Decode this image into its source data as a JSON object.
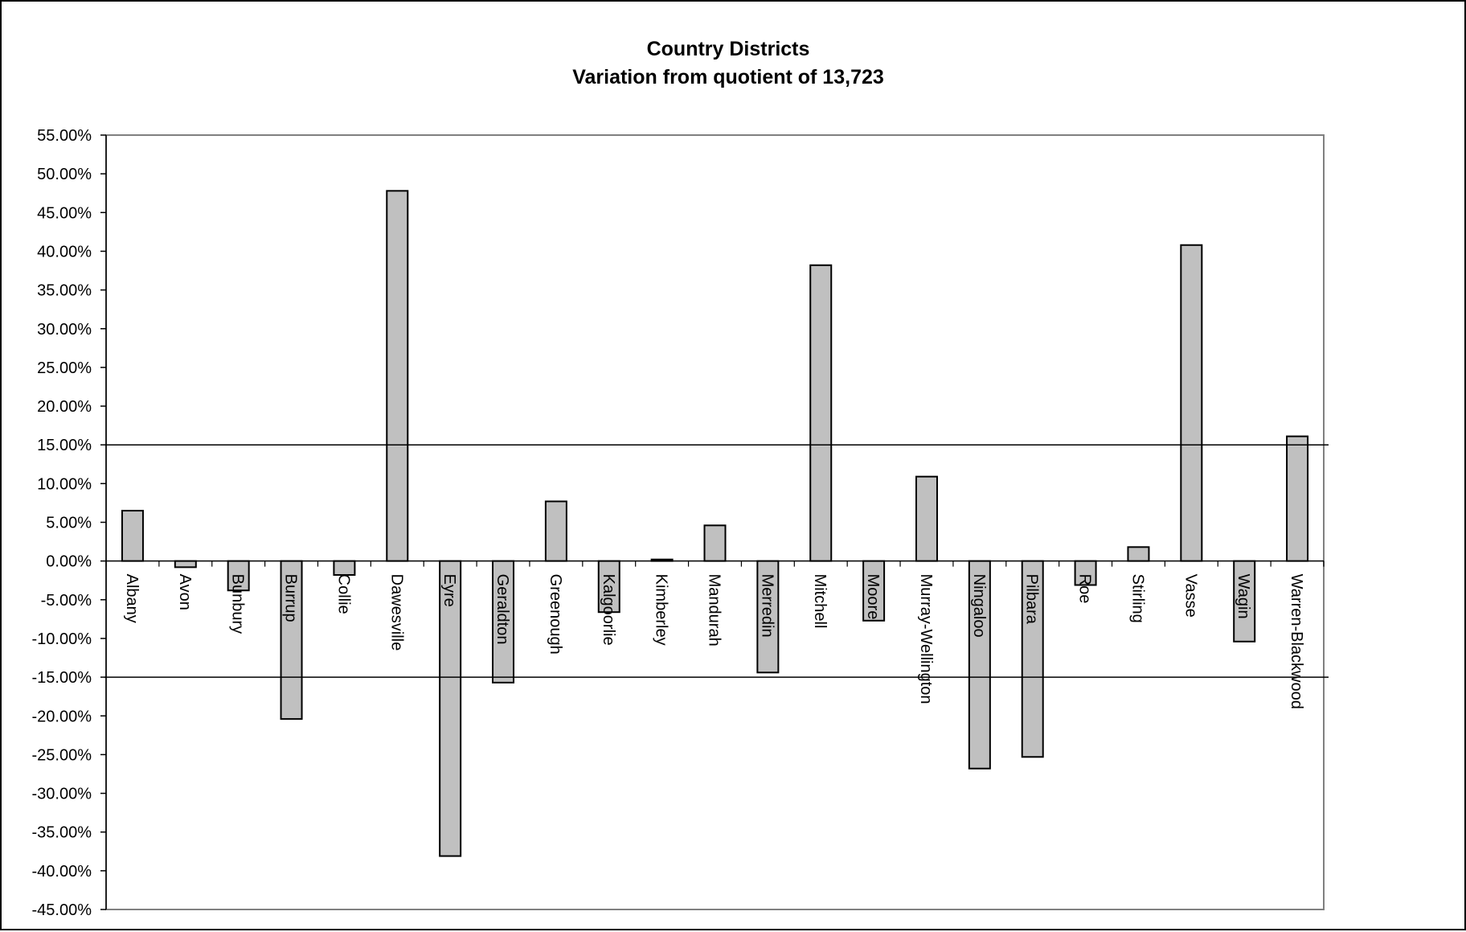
{
  "chart_data": {
    "type": "bar",
    "title": "Country Districts",
    "subtitle": "Variation from quotient of 13,723",
    "xlabel": "",
    "ylabel": "",
    "ylim": [
      -0.45,
      0.55
    ],
    "ytick_step": 0.05,
    "yticks": [
      "55.00%",
      "50.00%",
      "45.00%",
      "40.00%",
      "35.00%",
      "30.00%",
      "25.00%",
      "20.00%",
      "15.00%",
      "10.00%",
      "5.00%",
      "0.00%",
      "-5.00%",
      "-10.00%",
      "-15.00%",
      "-20.00%",
      "-25.00%",
      "-30.00%",
      "-35.00%",
      "-40.00%",
      "-45.00%"
    ],
    "categories": [
      "Albany",
      "Avon",
      "Bunbury",
      "Burrup",
      "Collie",
      "Dawesville",
      "Eyre",
      "Geraldton",
      "Greenough",
      "Kalgoorlie",
      "Kimberley",
      "Mandurah",
      "Merredin",
      "Mitchell",
      "Moore",
      "Murray-Wellington",
      "Ningaloo",
      "Pilbara",
      "Roe",
      "Stirling",
      "Vasse",
      "Wagin",
      "Warren-Blackwood"
    ],
    "values": [
      0.065,
      -0.008,
      -0.038,
      -0.204,
      -0.018,
      0.478,
      -0.381,
      -0.157,
      0.077,
      -0.066,
      0.002,
      0.046,
      -0.144,
      0.382,
      -0.077,
      0.109,
      -0.268,
      -0.253,
      -0.031,
      0.018,
      0.408,
      -0.104,
      0.161
    ],
    "reference_lines": [
      0.15,
      -0.15
    ],
    "grid": false,
    "legend": "none",
    "colors": {
      "bar_fill": "#c0c0c0",
      "bar_stroke": "#000000",
      "plot_border": "#808080",
      "axis": "#000000"
    }
  }
}
